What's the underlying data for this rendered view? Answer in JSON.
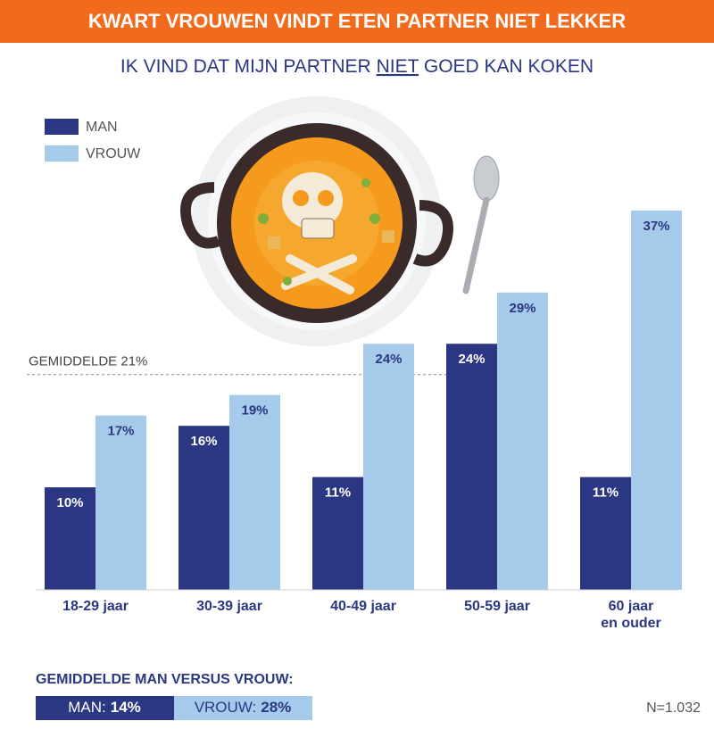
{
  "chart_data": {
    "type": "bar",
    "title": "KWART VROUWEN VINDT ETEN PARTNER NIET LEKKER",
    "subtitle_parts": [
      "IK VIND DAT MIJN PARTNER ",
      "NIET",
      " GOED KAN KOKEN"
    ],
    "categories": [
      "18-29 jaar",
      "30-39 jaar",
      "40-49 jaar",
      "50-59 jaar",
      "60 jaar\nen ouder"
    ],
    "series": [
      {
        "name": "MAN",
        "color": "#2b3782",
        "values": [
          10,
          16,
          11,
          24,
          11
        ],
        "value_labels": [
          "10%",
          "16%",
          "11%",
          "24%",
          "11%"
        ]
      },
      {
        "name": "VROUW",
        "color": "#a6cbea",
        "values": [
          17,
          19,
          24,
          29,
          37
        ],
        "value_labels": [
          "17%",
          "19%",
          "24%",
          "29%",
          "37%"
        ]
      }
    ],
    "ylim": [
      0,
      40
    ],
    "reference_line": {
      "value": 21,
      "label": "GEMIDDELDE 21%"
    },
    "summary": {
      "title": "GEMIDDELDE MAN VERSUS VROUW:",
      "items": [
        {
          "label": "MAN:",
          "value": "14%"
        },
        {
          "label": "VROUW:",
          "value": "28%"
        }
      ]
    },
    "sample_size": "N=1.032"
  }
}
